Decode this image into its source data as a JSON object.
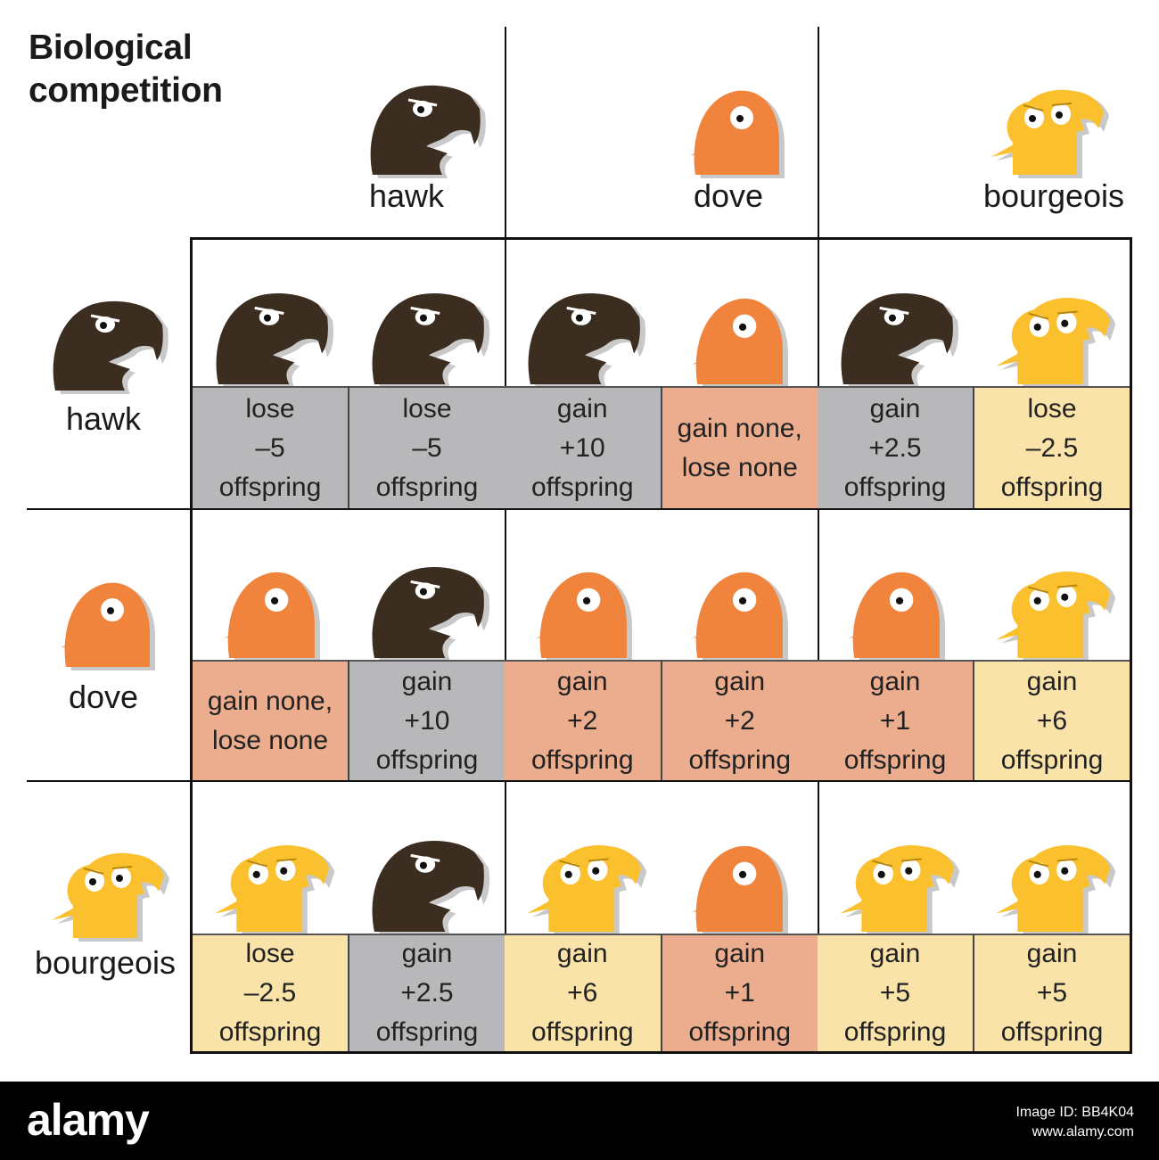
{
  "title": "Biological\ncompetition",
  "strategies": [
    "hawk",
    "dove",
    "bourgeois"
  ],
  "colors": {
    "hawk": "#3b2d1f",
    "dove": "#f0843c",
    "bourgeois": "#fbc02d",
    "cell_gray": "#b8b8bb",
    "cell_salmon": "#ebad8e",
    "cell_cream": "#f9e3a9"
  },
  "payoff_matrix": [
    [
      {
        "pair": [
          "hawk",
          "hawk"
        ],
        "outcomes": [
          {
            "text": "lose\n–5\noffspring",
            "color": "gray"
          },
          {
            "text": "lose\n–5\noffspring",
            "color": "gray"
          }
        ]
      },
      {
        "pair": [
          "hawk",
          "dove"
        ],
        "outcomes": [
          {
            "text": "gain\n+10\noffspring",
            "color": "gray"
          },
          {
            "text": "gain none,\nlose none",
            "color": "salmon"
          }
        ]
      },
      {
        "pair": [
          "hawk",
          "bourgeois"
        ],
        "outcomes": [
          {
            "text": "gain\n+2.5\noffspring",
            "color": "gray"
          },
          {
            "text": "lose\n–2.5\noffspring",
            "color": "cream"
          }
        ]
      }
    ],
    [
      {
        "pair": [
          "dove",
          "hawk"
        ],
        "outcomes": [
          {
            "text": "gain none,\nlose none",
            "color": "salmon"
          },
          {
            "text": "gain\n+10\noffspring",
            "color": "gray"
          }
        ]
      },
      {
        "pair": [
          "dove",
          "dove"
        ],
        "outcomes": [
          {
            "text": "gain\n+2\noffspring",
            "color": "salmon"
          },
          {
            "text": "gain\n+2\noffspring",
            "color": "salmon"
          }
        ]
      },
      {
        "pair": [
          "dove",
          "bourgeois"
        ],
        "outcomes": [
          {
            "text": "gain\n+1\noffspring",
            "color": "salmon"
          },
          {
            "text": "gain\n+6\noffspring",
            "color": "cream"
          }
        ]
      }
    ],
    [
      {
        "pair": [
          "bourgeois",
          "hawk"
        ],
        "outcomes": [
          {
            "text": "lose\n–2.5\noffspring",
            "color": "cream"
          },
          {
            "text": "gain\n+2.5\noffspring",
            "color": "gray"
          }
        ]
      },
      {
        "pair": [
          "bourgeois",
          "dove"
        ],
        "outcomes": [
          {
            "text": "gain\n+6\noffspring",
            "color": "cream"
          },
          {
            "text": "gain\n+1\noffspring",
            "color": "salmon"
          }
        ]
      },
      {
        "pair": [
          "bourgeois",
          "bourgeois"
        ],
        "outcomes": [
          {
            "text": "gain\n+5\noffspring",
            "color": "cream"
          },
          {
            "text": "gain\n+5\noffspring",
            "color": "cream"
          }
        ]
      }
    ]
  ],
  "footer": {
    "brand": "alamy",
    "image_id": "Image ID: BB4K04",
    "url": "www.alamy.com"
  }
}
